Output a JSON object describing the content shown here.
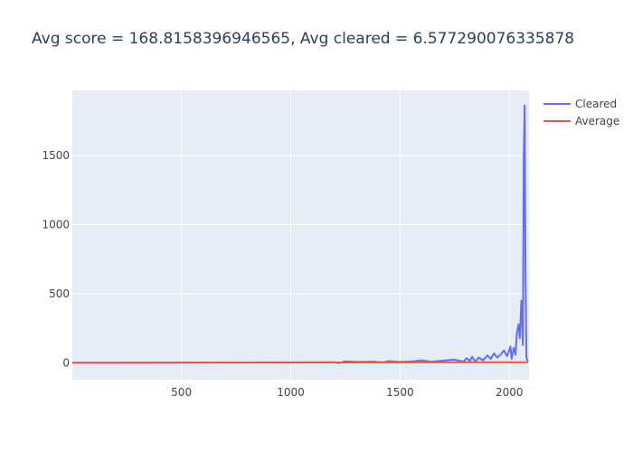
{
  "chart_data": {
    "type": "line",
    "title": "Avg score = 168.8158396946565, Avg cleared = 6.577290076335878",
    "xlabel": "",
    "ylabel": "",
    "xlim": [
      1,
      2090
    ],
    "ylim": [
      -120,
      1970
    ],
    "x_ticks": [
      500,
      1000,
      1500,
      2000
    ],
    "y_ticks": [
      0,
      500,
      1000,
      1500
    ],
    "grid": true,
    "legend": "top-right",
    "colors": {
      "plot_bg": "#e5ecf6",
      "grid": "#ffffff",
      "cleared": "#636efa",
      "average": "#ef553b"
    },
    "series": [
      {
        "name": "Cleared",
        "x": [
          1,
          1200,
          1220,
          1250,
          1300,
          1380,
          1420,
          1450,
          1500,
          1560,
          1600,
          1640,
          1700,
          1750,
          1790,
          1805,
          1820,
          1830,
          1845,
          1860,
          1880,
          1900,
          1915,
          1930,
          1945,
          1960,
          1975,
          1990,
          2005,
          2010,
          2020,
          2028,
          2035,
          2042,
          2048,
          2055,
          2062,
          2066,
          2070,
          2074,
          2078,
          2085
        ],
        "y": [
          2,
          6,
          0,
          12,
          8,
          10,
          5,
          14,
          8,
          12,
          20,
          10,
          18,
          25,
          10,
          35,
          15,
          45,
          10,
          40,
          20,
          55,
          30,
          70,
          40,
          60,
          90,
          50,
          120,
          30,
          110,
          60,
          220,
          280,
          180,
          450,
          130,
          1500,
          1860,
          700,
          40,
          10
        ]
      },
      {
        "name": "Average",
        "x": [
          1,
          2085
        ],
        "y": [
          2,
          6
        ]
      }
    ]
  }
}
